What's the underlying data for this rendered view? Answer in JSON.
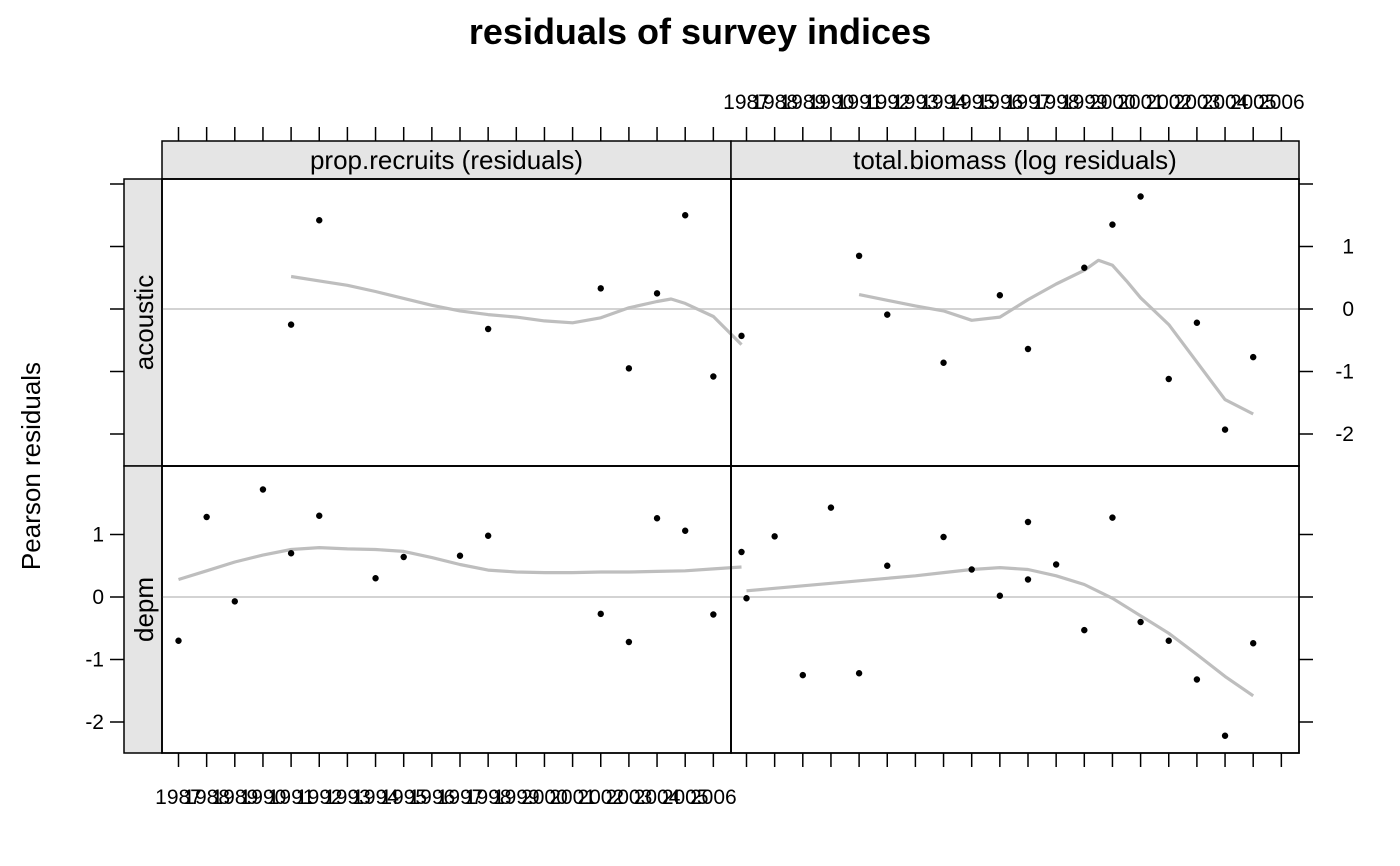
{
  "chart_data": {
    "type": "scatter",
    "title": "residuals of survey indices",
    "ylabel": "Pearson residuals",
    "ylim": [
      -2.55,
      2.05
    ],
    "y_ticks": [
      -2,
      -1,
      0,
      1
    ],
    "x_ticks": [
      "1987",
      "1988",
      "1989",
      "1990",
      "1991",
      "1992",
      "1993",
      "1994",
      "1995",
      "1996",
      "1997",
      "1998",
      "1999",
      "2000",
      "2001",
      "2002",
      "2003",
      "2004",
      "2005",
      "2006"
    ],
    "columns": [
      "prop.recruits (residuals)",
      "total.biomass (log residuals)"
    ],
    "rows": [
      "acoustic",
      "depm"
    ],
    "panels": [
      {
        "row": "acoustic",
        "column": "prop.recruits (residuals)",
        "points": [
          [
            1991,
            -0.25
          ],
          [
            1992,
            1.42
          ],
          [
            1998,
            -0.32
          ],
          [
            2002,
            0.33
          ],
          [
            2003,
            -0.95
          ],
          [
            2004,
            0.25
          ],
          [
            2005,
            1.5
          ],
          [
            2006,
            -1.08
          ],
          [
            2007,
            -0.43
          ]
        ],
        "smooth": [
          [
            1991,
            0.52
          ],
          [
            1992,
            0.45
          ],
          [
            1993,
            0.38
          ],
          [
            1994,
            0.28
          ],
          [
            1995,
            0.17
          ],
          [
            1996,
            0.06
          ],
          [
            1997,
            -0.03
          ],
          [
            1998,
            -0.09
          ],
          [
            1999,
            -0.13
          ],
          [
            2000,
            -0.19
          ],
          [
            2001,
            -0.22
          ],
          [
            2002,
            -0.14
          ],
          [
            2003,
            0.02
          ],
          [
            2004,
            0.12
          ],
          [
            2004.5,
            0.16
          ],
          [
            2005,
            0.09
          ],
          [
            2006,
            -0.12
          ],
          [
            2007,
            -0.57
          ]
        ]
      },
      {
        "row": "acoustic",
        "column": "total.biomass (log residuals)",
        "points": [
          [
            1991,
            0.85
          ],
          [
            1992,
            -0.09
          ],
          [
            1994,
            -0.86
          ],
          [
            1996,
            0.22
          ],
          [
            1997,
            -0.64
          ],
          [
            1999,
            0.66
          ],
          [
            2000,
            1.35
          ],
          [
            2001,
            1.8
          ],
          [
            2002,
            -1.12
          ],
          [
            2003,
            -0.22
          ],
          [
            2004,
            -1.93
          ],
          [
            2005,
            -0.77
          ]
        ],
        "smooth": [
          [
            1991,
            0.23
          ],
          [
            1992,
            0.14
          ],
          [
            1993,
            0.05
          ],
          [
            1994,
            -0.03
          ],
          [
            1995,
            -0.18
          ],
          [
            1996,
            -0.13
          ],
          [
            1997,
            0.15
          ],
          [
            1998,
            0.4
          ],
          [
            1999,
            0.62
          ],
          [
            1999.5,
            0.78
          ],
          [
            2000,
            0.7
          ],
          [
            2000.5,
            0.45
          ],
          [
            2001,
            0.18
          ],
          [
            2002,
            -0.25
          ],
          [
            2003,
            -0.85
          ],
          [
            2004,
            -1.45
          ],
          [
            2005,
            -1.68
          ]
        ]
      },
      {
        "row": "depm",
        "column": "prop.recruits (residuals)",
        "points": [
          [
            1987,
            -0.7
          ],
          [
            1988,
            1.28
          ],
          [
            1989,
            -0.07
          ],
          [
            1990,
            1.72
          ],
          [
            1991,
            0.7
          ],
          [
            1992,
            1.3
          ],
          [
            1994,
            0.3
          ],
          [
            1995,
            0.64
          ],
          [
            1997,
            0.66
          ],
          [
            1998,
            0.98
          ],
          [
            2002,
            -0.27
          ],
          [
            2003,
            -0.72
          ],
          [
            2004,
            1.26
          ],
          [
            2005,
            1.06
          ],
          [
            2006,
            -0.28
          ],
          [
            2007,
            0.72
          ]
        ],
        "smooth": [
          [
            1987,
            0.28
          ],
          [
            1988,
            0.42
          ],
          [
            1989,
            0.56
          ],
          [
            1990,
            0.67
          ],
          [
            1991,
            0.76
          ],
          [
            1992,
            0.79
          ],
          [
            1993,
            0.77
          ],
          [
            1994,
            0.76
          ],
          [
            1995,
            0.73
          ],
          [
            1996,
            0.63
          ],
          [
            1997,
            0.52
          ],
          [
            1998,
            0.43
          ],
          [
            1999,
            0.4
          ],
          [
            2000,
            0.39
          ],
          [
            2001,
            0.39
          ],
          [
            2002,
            0.4
          ],
          [
            2003,
            0.4
          ],
          [
            2004,
            0.41
          ],
          [
            2005,
            0.42
          ],
          [
            2006,
            0.45
          ],
          [
            2007,
            0.48
          ]
        ]
      },
      {
        "row": "depm",
        "column": "total.biomass (log residuals)",
        "points": [
          [
            1987,
            -0.02
          ],
          [
            1988,
            0.97
          ],
          [
            1989,
            -1.25
          ],
          [
            1990,
            1.43
          ],
          [
            1991,
            -1.22
          ],
          [
            1992,
            0.5
          ],
          [
            1994,
            0.96
          ],
          [
            1995,
            0.44
          ],
          [
            1996,
            0.02
          ],
          [
            1997,
            0.28
          ],
          [
            1997,
            1.2
          ],
          [
            1998,
            0.52
          ],
          [
            1999,
            -0.53
          ],
          [
            2000,
            1.27
          ],
          [
            2001,
            -0.4
          ],
          [
            2002,
            -0.7
          ],
          [
            2003,
            -1.32
          ],
          [
            2004,
            -2.22
          ],
          [
            2005,
            -0.74
          ]
        ],
        "smooth": [
          [
            1987,
            0.1
          ],
          [
            1988,
            0.14
          ],
          [
            1989,
            0.18
          ],
          [
            1990,
            0.22
          ],
          [
            1991,
            0.26
          ],
          [
            1992,
            0.3
          ],
          [
            1993,
            0.34
          ],
          [
            1994,
            0.39
          ],
          [
            1995,
            0.44
          ],
          [
            1996,
            0.47
          ],
          [
            1997,
            0.44
          ],
          [
            1998,
            0.34
          ],
          [
            1999,
            0.2
          ],
          [
            2000,
            -0.02
          ],
          [
            2001,
            -0.3
          ],
          [
            2002,
            -0.58
          ],
          [
            2003,
            -0.92
          ],
          [
            2004,
            -1.27
          ],
          [
            2005,
            -1.58
          ]
        ]
      }
    ],
    "grid": false,
    "reference_line": 0,
    "colors": {
      "smooth": "#bebebe",
      "refline": "#d3d3d3",
      "strip": "#e5e5e5",
      "points": "#000000"
    }
  }
}
